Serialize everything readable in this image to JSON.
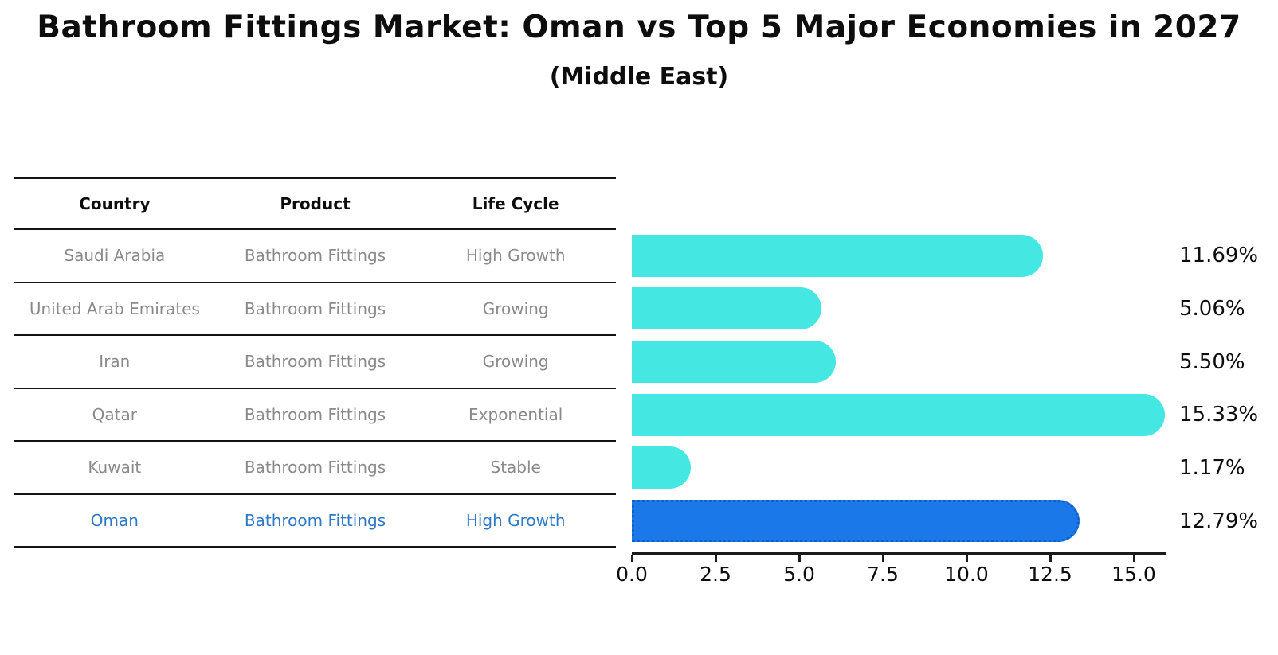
{
  "title": "Bathroom Fittings Market: Oman vs Top 5 Major Economies in 2027",
  "subtitle": "(Middle East)",
  "table": {
    "headers": [
      "Country",
      "Product",
      "Life Cycle"
    ],
    "rows": [
      {
        "country": "Saudi Arabia",
        "product": "Bathroom Fittings",
        "life_cycle": "High Growth"
      },
      {
        "country": "United Arab Emirates",
        "product": "Bathroom Fittings",
        "life_cycle": "Growing"
      },
      {
        "country": "Iran",
        "product": "Bathroom Fittings",
        "life_cycle": "Growing"
      },
      {
        "country": "Qatar",
        "product": "Bathroom Fittings",
        "life_cycle": "Exponential"
      },
      {
        "country": "Kuwait",
        "product": "Bathroom Fittings",
        "life_cycle": "Stable"
      },
      {
        "country": "Oman",
        "product": "Bathroom Fittings",
        "life_cycle": "High Growth"
      }
    ]
  },
  "chart_data": {
    "type": "bar",
    "orientation": "horizontal",
    "categories": [
      "Saudi Arabia",
      "United Arab Emirates",
      "Iran",
      "Qatar",
      "Kuwait",
      "Oman"
    ],
    "values": [
      11.69,
      5.06,
      5.5,
      15.33,
      1.17,
      12.79
    ],
    "value_labels": [
      "11.69%",
      "5.06%",
      "5.50%",
      "15.33%",
      "1.17%",
      "12.79%"
    ],
    "unit": "%",
    "x_ticks": [
      "0.0",
      "2.5",
      "5.0",
      "7.5",
      "10.0",
      "12.5",
      "15.0"
    ],
    "xlim": [
      0,
      16
    ],
    "grid": false,
    "legend": false,
    "highlight_index": 5,
    "title": "Bathroom Fittings Market: Oman vs Top 5 Major Economies in 2027",
    "subtitle": "(Middle East)",
    "xlabel": "",
    "ylabel": ""
  },
  "colors": {
    "bar_color": "#45E7E3",
    "highlight_bar_color": "#1A78E8",
    "highlight_bar_border": "#1360C4",
    "highlight_text": "#2D79C7",
    "row_text": "#8A8A8A",
    "heading_text": "#0D0D0D"
  }
}
